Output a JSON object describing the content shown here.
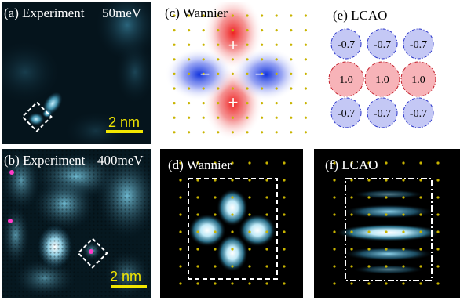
{
  "panels": {
    "a": {
      "label": "(a) Experiment",
      "energy": "50meV",
      "scale": "2 nm"
    },
    "b": {
      "label": "(b) Experiment",
      "energy": "400meV",
      "scale": "2 nm"
    },
    "c": {
      "label": "(c) Wannier",
      "signs": [
        "+",
        "−",
        "−",
        "+"
      ]
    },
    "d": {
      "label": "(d) Wannier"
    },
    "e": {
      "label": "(e) LCAO",
      "coefficients": [
        [
          "-0.7",
          "-0.7",
          "-0.7"
        ],
        [
          "1.0",
          "1.0",
          "1.0"
        ],
        [
          "-0.7",
          "-0.7",
          "-0.7"
        ]
      ]
    },
    "f": {
      "label": "(f) LCAO"
    }
  },
  "colors": {
    "stm_cyan": "#7fd4ee",
    "scale_bar": "#f2e600",
    "lattice_dot": "#c8b400",
    "positive": "#ee2222",
    "negative": "#1133dd",
    "lcao_positive_fill": "#f7b3b8",
    "lcao_negative_fill": "#c4c8f5",
    "marker": "#ff3cc8"
  }
}
